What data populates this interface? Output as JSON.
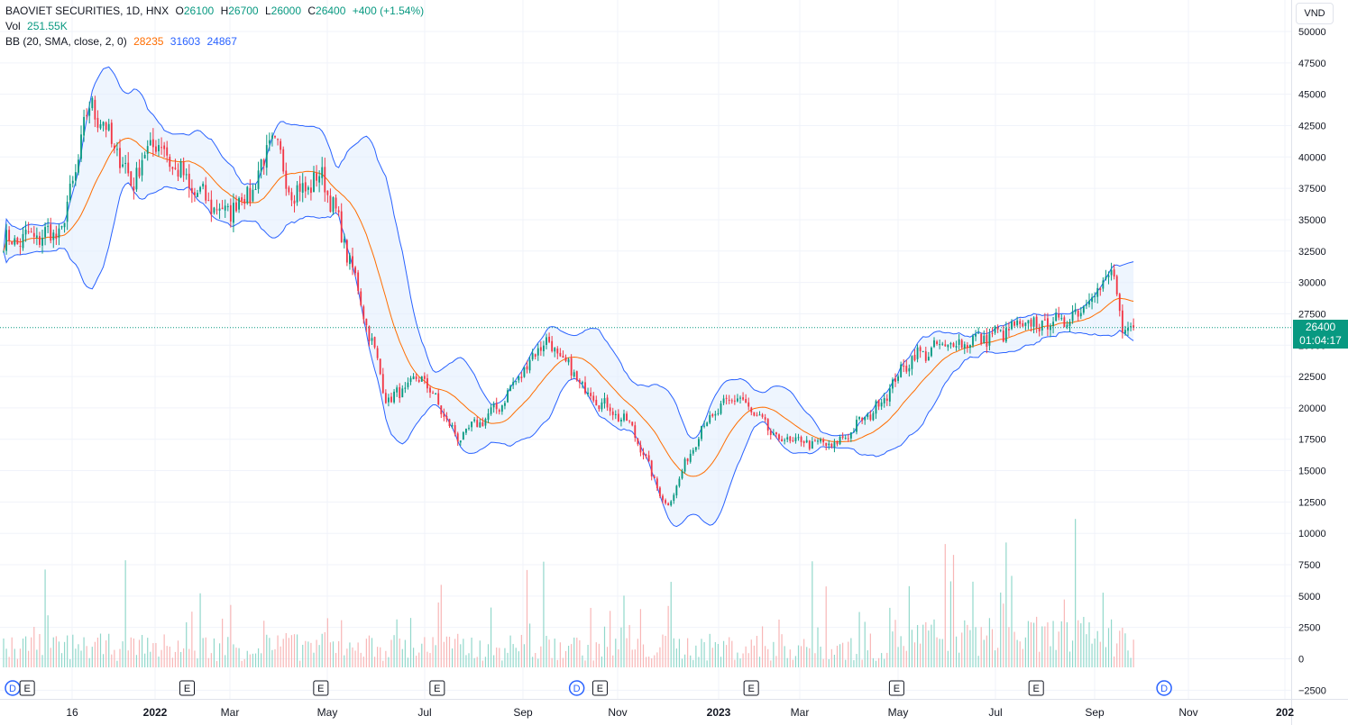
{
  "legend": {
    "symbol": "BAOVIET SECURITIES, 1D, HNX",
    "open_label": "O",
    "open": "26100",
    "high_label": "H",
    "high": "26700",
    "low_label": "L",
    "low": "26000",
    "close_label": "C",
    "close": "26400",
    "change": "+400 (+1.54%)",
    "vol_label": "Vol",
    "vol_value": "251.55K",
    "bb_label": "BB (20, SMA, close, 2, 0)",
    "bb_basis": "28235",
    "bb_upper": "31603",
    "bb_lower": "24867"
  },
  "currency_button": "VND",
  "price_tag": {
    "price": "26400",
    "countdown": "01:04:17"
  },
  "colors": {
    "up": "#089981",
    "down": "#f23645",
    "basis": "#ff6d00",
    "band": "#2962ff",
    "band_fill": "#e3effd"
  },
  "chart_data": {
    "type": "candlestick",
    "price_axis_ticks": [
      50000,
      47500,
      45000,
      42500,
      40000,
      37500,
      35000,
      32500,
      30000,
      27500,
      25000,
      22500,
      20000,
      17500,
      15000,
      12500,
      10000,
      7500,
      5000,
      2500,
      0,
      -2500
    ],
    "price_axis_labels": [
      "50000",
      "47500",
      "45000",
      "42500",
      "40000",
      "37500",
      "35000",
      "32500",
      "30000",
      "27500",
      "25000",
      "22500",
      "20000",
      "17500",
      "15000",
      "12500",
      "10000",
      "7500",
      "5000",
      "2500",
      "0",
      "−2500"
    ],
    "time_axis_labels": [
      "16",
      "2022",
      "Mar",
      "May",
      "Jul",
      "Sep",
      "Nov",
      "2023",
      "Mar",
      "May",
      "Jul",
      "Sep",
      "Nov",
      "202"
    ],
    "last_price": 26400,
    "price_anchors": [
      {
        "month": 0.0,
        "close": 33200
      },
      {
        "month": 1.0,
        "close": 34000
      },
      {
        "month": 1.5,
        "close": 44500
      },
      {
        "month": 2.2,
        "close": 38000
      },
      {
        "month": 2.6,
        "close": 41500
      },
      {
        "month": 3.2,
        "close": 37500
      },
      {
        "month": 3.8,
        "close": 35500
      },
      {
        "month": 4.3,
        "close": 37500
      },
      {
        "month": 4.6,
        "close": 41500
      },
      {
        "month": 5.0,
        "close": 37000
      },
      {
        "month": 5.5,
        "close": 38500
      },
      {
        "month": 6.0,
        "close": 31000
      },
      {
        "month": 6.6,
        "close": 20500
      },
      {
        "month": 7.2,
        "close": 22500
      },
      {
        "month": 7.8,
        "close": 17500
      },
      {
        "month": 8.5,
        "close": 20000
      },
      {
        "month": 9.3,
        "close": 25500
      },
      {
        "month": 10.0,
        "close": 21500
      },
      {
        "month": 10.8,
        "close": 18500
      },
      {
        "month": 11.4,
        "close": 12000
      },
      {
        "month": 12.0,
        "close": 18500
      },
      {
        "month": 12.6,
        "close": 21000
      },
      {
        "month": 13.3,
        "close": 17500
      },
      {
        "month": 14.3,
        "close": 17000
      },
      {
        "month": 15.0,
        "close": 20000
      },
      {
        "month": 15.6,
        "close": 24000
      },
      {
        "month": 16.2,
        "close": 25000
      },
      {
        "month": 16.8,
        "close": 25500
      },
      {
        "month": 17.5,
        "close": 26500
      },
      {
        "month": 18.3,
        "close": 27000
      },
      {
        "month": 18.9,
        "close": 30000
      },
      {
        "month": 19.1,
        "close": 30500
      },
      {
        "month": 19.25,
        "close": 25500
      },
      {
        "month": 19.45,
        "close": 26400
      }
    ],
    "event_markers": [
      {
        "type": "D",
        "month": 0.0
      },
      {
        "type": "E",
        "month": 0.25
      },
      {
        "type": "E",
        "month": 3.0
      },
      {
        "type": "E",
        "month": 5.3
      },
      {
        "type": "E",
        "month": 7.3
      },
      {
        "type": "D",
        "month": 9.7
      },
      {
        "type": "E",
        "month": 10.1
      },
      {
        "type": "E",
        "month": 12.7
      },
      {
        "type": "E",
        "month": 15.2
      },
      {
        "type": "E",
        "month": 17.6
      },
      {
        "type": "D",
        "month": 19.8
      }
    ]
  }
}
